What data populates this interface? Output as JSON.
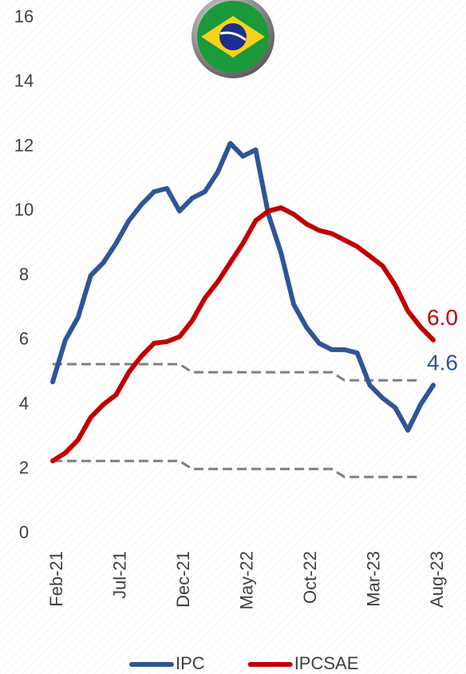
{
  "chart_data": {
    "type": "line",
    "categories": [
      "Feb-21",
      null,
      null,
      null,
      null,
      "Jul-21",
      null,
      null,
      null,
      null,
      "Dec-21",
      null,
      null,
      null,
      null,
      "May-22",
      null,
      null,
      null,
      null,
      "Oct-22",
      null,
      null,
      null,
      null,
      "Mar-23",
      null,
      null,
      null,
      null,
      "Aug-23"
    ],
    "series": [
      {
        "name": "IPC",
        "color": "#2f5597",
        "values": [
          4.7,
          6.0,
          6.7,
          8.0,
          8.4,
          9.0,
          9.7,
          10.2,
          10.6,
          10.7,
          10.0,
          10.4,
          10.6,
          11.2,
          12.1,
          11.7,
          11.9,
          9.9,
          8.7,
          7.1,
          6.4,
          5.9,
          5.7,
          5.7,
          5.6,
          4.6,
          4.2,
          3.9,
          3.2,
          4.0,
          4.6
        ],
        "value_labels": [
          null,
          null,
          null,
          null,
          null,
          null,
          null,
          null,
          null,
          null,
          null,
          null,
          null,
          null,
          null,
          null,
          null,
          null,
          null,
          null,
          null,
          null,
          null,
          null,
          null,
          null,
          null,
          null,
          null,
          null,
          "4.6"
        ]
      },
      {
        "name": "IPCSAE",
        "color": "#c00000",
        "values": [
          2.25,
          2.5,
          2.9,
          3.6,
          4.0,
          4.3,
          5.0,
          5.5,
          5.9,
          5.95,
          6.1,
          6.6,
          7.3,
          7.8,
          8.4,
          9.0,
          9.7,
          10.0,
          10.1,
          9.9,
          9.6,
          9.4,
          9.3,
          9.1,
          8.9,
          8.6,
          8.3,
          7.7,
          6.9,
          6.4,
          6.0
        ],
        "value_labels": [
          null,
          null,
          null,
          null,
          null,
          null,
          null,
          null,
          null,
          null,
          null,
          null,
          null,
          null,
          null,
          null,
          null,
          null,
          null,
          null,
          null,
          null,
          null,
          null,
          null,
          null,
          null,
          null,
          null,
          null,
          "6.0"
        ]
      },
      {
        "color": "#808080",
        "dashed": true,
        "values": [
          5.25,
          5.25,
          5.25,
          5.25,
          5.25,
          5.25,
          5.25,
          5.25,
          5.25,
          5.25,
          5.25,
          5.0,
          5.0,
          5.0,
          5.0,
          5.0,
          5.0,
          5.0,
          5.0,
          5.0,
          5.0,
          5.0,
          5.0,
          4.75,
          4.75,
          4.75,
          4.75,
          4.75,
          4.75,
          4.75,
          null
        ]
      },
      {
        "color": "#808080",
        "dashed": true,
        "values": [
          2.25,
          2.25,
          2.25,
          2.25,
          2.25,
          2.25,
          2.25,
          2.25,
          2.25,
          2.25,
          2.25,
          2.0,
          2.0,
          2.0,
          2.0,
          2.0,
          2.0,
          2.0,
          2.0,
          2.0,
          2.0,
          2.0,
          2.0,
          1.75,
          1.75,
          1.75,
          1.75,
          1.75,
          1.75,
          1.75,
          null
        ]
      }
    ],
    "ylim": [
      0,
      16
    ],
    "yticks": [
      0,
      2,
      4,
      6,
      8,
      10,
      12,
      14,
      16
    ],
    "legend": "bottom"
  }
}
